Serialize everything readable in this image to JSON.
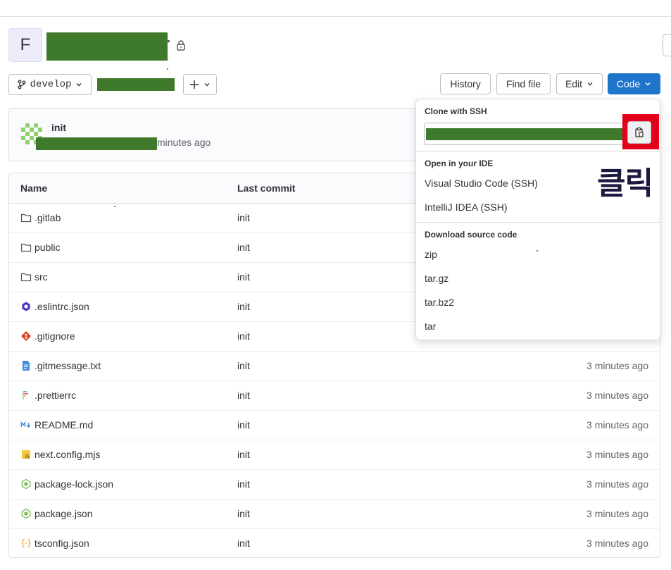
{
  "project": {
    "avatar_letter": "F"
  },
  "toolbar": {
    "branch": "develop",
    "history": "History",
    "find_file": "Find file",
    "edit": "Edit",
    "code": "Code",
    "add_icon": "plus-icon"
  },
  "last_commit": {
    "title": "init",
    "time_suffix": "minutes ago"
  },
  "table": {
    "col_name": "Name",
    "col_last_commit": "Last commit",
    "rows": [
      {
        "name": ".gitlab",
        "commit": "init",
        "time": "",
        "icon": "folder-icon"
      },
      {
        "name": "public",
        "commit": "init",
        "time": "",
        "icon": "folder-icon"
      },
      {
        "name": "src",
        "commit": "init",
        "time": "",
        "icon": "folder-icon"
      },
      {
        "name": ".eslintrc.json",
        "commit": "init",
        "time": "",
        "icon": "eslint-icon"
      },
      {
        "name": ".gitignore",
        "commit": "init",
        "time": "",
        "icon": "git-icon"
      },
      {
        "name": ".gitmessage.txt",
        "commit": "init",
        "time": "3 minutes ago",
        "icon": "text-file-icon"
      },
      {
        "name": ".prettierrc",
        "commit": "init",
        "time": "3 minutes ago",
        "icon": "prettier-icon"
      },
      {
        "name": "README.md",
        "commit": "init",
        "time": "3 minutes ago",
        "icon": "markdown-icon"
      },
      {
        "name": "next.config.mjs",
        "commit": "init",
        "time": "3 minutes ago",
        "icon": "javascript-icon"
      },
      {
        "name": "package-lock.json",
        "commit": "init",
        "time": "3 minutes ago",
        "icon": "nodejs-icon"
      },
      {
        "name": "package.json",
        "commit": "init",
        "time": "3 minutes ago",
        "icon": "nodejs-icon"
      },
      {
        "name": "tsconfig.json",
        "commit": "init",
        "time": "3 minutes ago",
        "icon": "json-icon"
      }
    ]
  },
  "dropdown": {
    "clone_ssh_label": "Clone with SSH",
    "open_ide_label": "Open in your IDE",
    "ide_items": [
      "Visual Studio Code (SSH)",
      "IntelliJ IDEA (SSH)"
    ],
    "download_label": "Download source code",
    "download_items": [
      "zip",
      "tar.gz",
      "tar.bz2",
      "tar"
    ],
    "copy_icon": "clipboard-icon"
  },
  "annotation": {
    "text": "클릭",
    "highlight_color": "#e3001b"
  },
  "colors": {
    "primary": "#1f75cb",
    "redaction": "#3f7a2c"
  }
}
